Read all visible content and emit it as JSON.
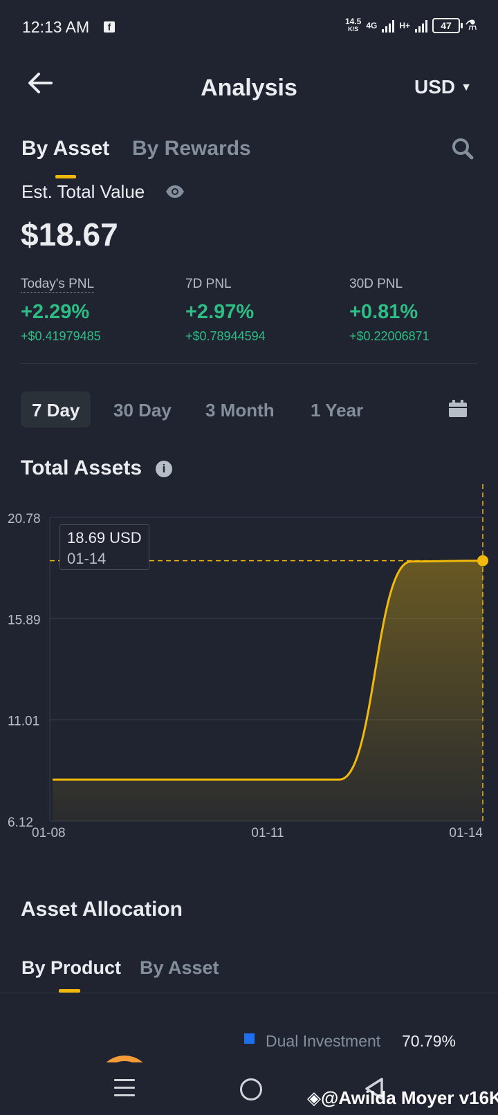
{
  "status_bar": {
    "time": "12:13 AM",
    "speed_value": "14.5",
    "speed_unit": "K/S",
    "network": "4G",
    "network2": "H+",
    "battery": "47"
  },
  "header": {
    "title": "Analysis",
    "currency": "USD"
  },
  "tabs": {
    "by_asset": "By Asset",
    "by_rewards": "By Rewards"
  },
  "summary": {
    "est_label": "Est. Total Value",
    "total_value": "$18.67"
  },
  "pnl": [
    {
      "label": "Today's PNL",
      "pct": "+2.29%",
      "amount": "+$0.41979485"
    },
    {
      "label": "7D PNL",
      "pct": "+2.97%",
      "amount": "+$0.78944594"
    },
    {
      "label": "30D PNL",
      "pct": "+0.81%",
      "amount": "+$0.22006871"
    }
  ],
  "ranges": [
    "7 Day",
    "30 Day",
    "3 Month",
    "1 Year"
  ],
  "total_assets_title": "Total Assets",
  "tooltip": {
    "value": "18.69 USD",
    "date": "01-14"
  },
  "chart_data": {
    "type": "area",
    "title": "Total Assets",
    "x": [
      "01-08",
      "01-09",
      "01-10",
      "01-11",
      "01-12",
      "01-13",
      "01-14"
    ],
    "values": [
      8.12,
      8.12,
      8.12,
      8.12,
      8.12,
      18.65,
      18.69
    ],
    "yticks": [
      "20.78",
      "15.89",
      "11.01",
      "6.12"
    ],
    "xticks": [
      "01-08",
      "01-11",
      "01-14"
    ],
    "ylim": [
      6.12,
      20.78
    ],
    "line_color": "#f0b90b",
    "grid": true
  },
  "allocation": {
    "title": "Asset Allocation",
    "tab_product": "By Product",
    "tab_asset": "By Asset",
    "legend": [
      {
        "name": "Dual Investment",
        "pct": "70.79%",
        "color": "#1e6ff0"
      }
    ]
  },
  "watermark": "@Awilda Moyer v16K",
  "colors": {
    "background": "#1f2430",
    "accent": "#f0b90b",
    "positive": "#2ebd85",
    "muted": "#848e9c"
  }
}
